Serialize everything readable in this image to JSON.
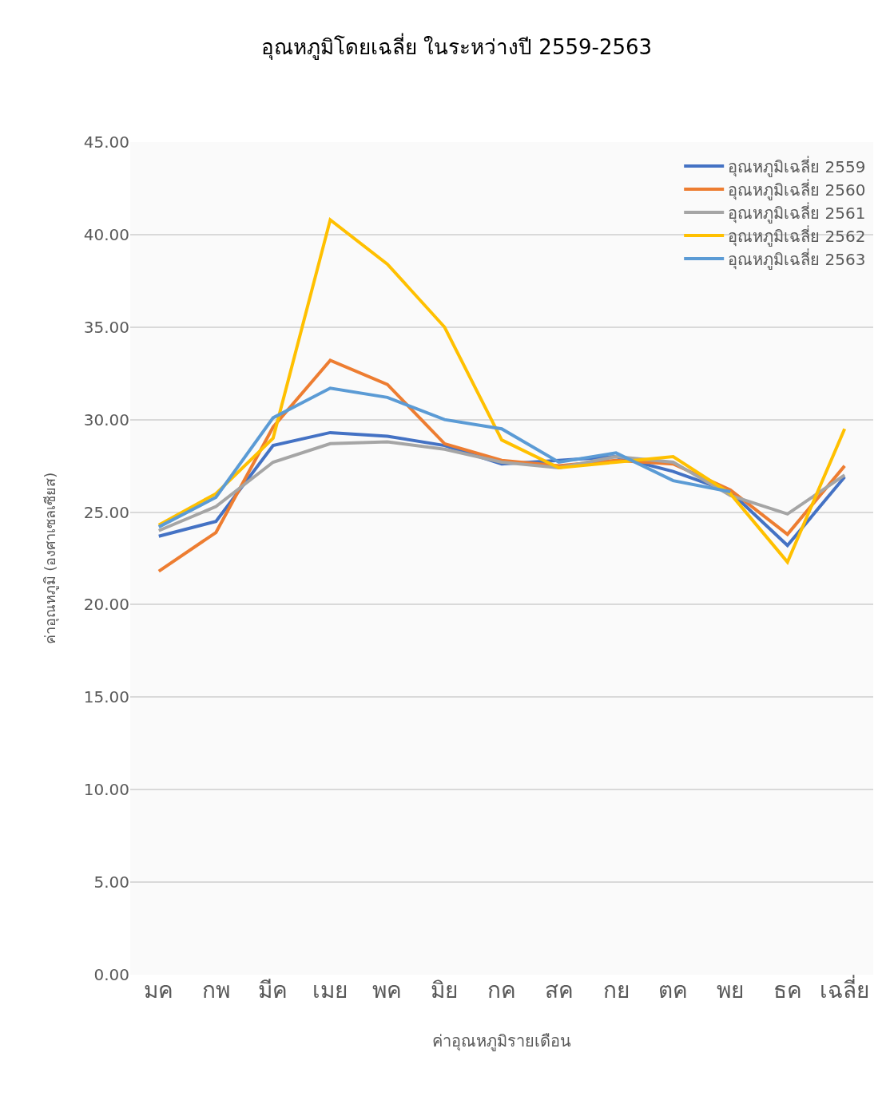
{
  "chart_data": {
    "type": "line",
    "title": "อุณหภูมิโดยเฉลี่ย ในระหว่างปี 2559-2563",
    "xlabel": "ค่าอุณหภูมิรายเดือน",
    "ylabel": "ค่าอุณหภูมิ (องศาเซลเซียส)",
    "categories": [
      "มค",
      "กพ",
      "มีค",
      "เมย",
      "พค",
      "มิย",
      "กค",
      "สค",
      "กย",
      "ตค",
      "พย",
      "ธค",
      "เฉลี่ย"
    ],
    "series": [
      {
        "name": "อุณหภูมิเฉลี่ย 2559",
        "color": "#4472c4",
        "values": [
          23.7,
          24.5,
          28.6,
          29.3,
          29.1,
          28.6,
          27.6,
          27.8,
          28.0,
          27.2,
          26.1,
          23.2,
          26.9
        ]
      },
      {
        "name": "อุณหภูมิเฉลี่ย 2560",
        "color": "#ed7d31",
        "values": [
          21.8,
          23.9,
          29.6,
          33.2,
          31.9,
          28.7,
          27.8,
          27.5,
          27.8,
          27.6,
          26.2,
          23.8,
          27.5
        ]
      },
      {
        "name": "อุณหภูมิเฉลี่ย 2561",
        "color": "#a5a5a5",
        "values": [
          24.0,
          25.3,
          27.7,
          28.7,
          28.8,
          28.4,
          27.7,
          27.4,
          28.0,
          27.7,
          25.9,
          24.9,
          27.0
        ]
      },
      {
        "name": "อุณหภูมิเฉลี่ย 2562",
        "color": "#ffc000",
        "values": [
          24.3,
          26.0,
          29.0,
          40.8,
          38.4,
          35.0,
          28.9,
          27.4,
          27.7,
          28.0,
          26.0,
          22.3,
          29.5
        ]
      },
      {
        "name": "อุณหภูมิเฉลี่ย 2563",
        "color": "#5b9bd5",
        "values": [
          24.2,
          25.8,
          30.1,
          31.7,
          31.2,
          30.0,
          29.5,
          27.7,
          28.2,
          26.7,
          26.1,
          null,
          null
        ]
      }
    ],
    "ylim": [
      0,
      45
    ],
    "yticks": [
      {
        "value": 0,
        "label": "0.00"
      },
      {
        "value": 5,
        "label": "5.00"
      },
      {
        "value": 10,
        "label": "10.00"
      },
      {
        "value": 15,
        "label": "15.00"
      },
      {
        "value": 20,
        "label": "20.00"
      },
      {
        "value": 25,
        "label": "25.00"
      },
      {
        "value": 30,
        "label": "30.00"
      },
      {
        "value": 35,
        "label": "35.00"
      },
      {
        "value": 40,
        "label": "40.00"
      },
      {
        "value": 45,
        "label": "45.00"
      }
    ],
    "grid": "y",
    "legend": "top right",
    "marker": "none",
    "line_style": "solid"
  }
}
